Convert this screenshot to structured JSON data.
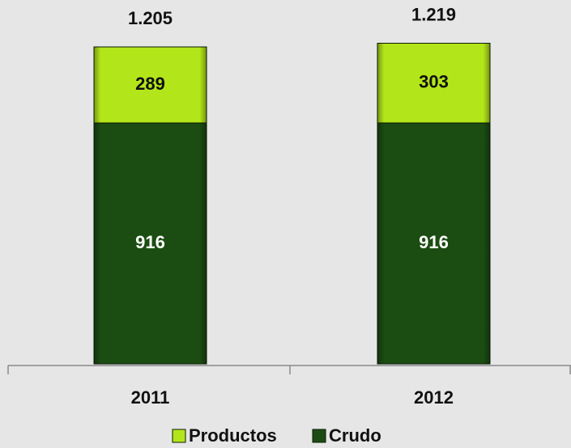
{
  "chart_data": {
    "type": "stacked-bar",
    "categories": [
      "2011",
      "2012"
    ],
    "series": [
      {
        "name": "Crudo",
        "color": "#1b4d12",
        "label_color": "#ffffff",
        "values": [
          916,
          916
        ]
      },
      {
        "name": "Productos",
        "color": "#b3e61a",
        "label_color": "#111111",
        "values": [
          289,
          303
        ]
      }
    ],
    "totals": {
      "values": [
        1205,
        1219
      ],
      "value_labels": [
        "1.205",
        "1.219"
      ]
    },
    "legend": "bottom"
  }
}
